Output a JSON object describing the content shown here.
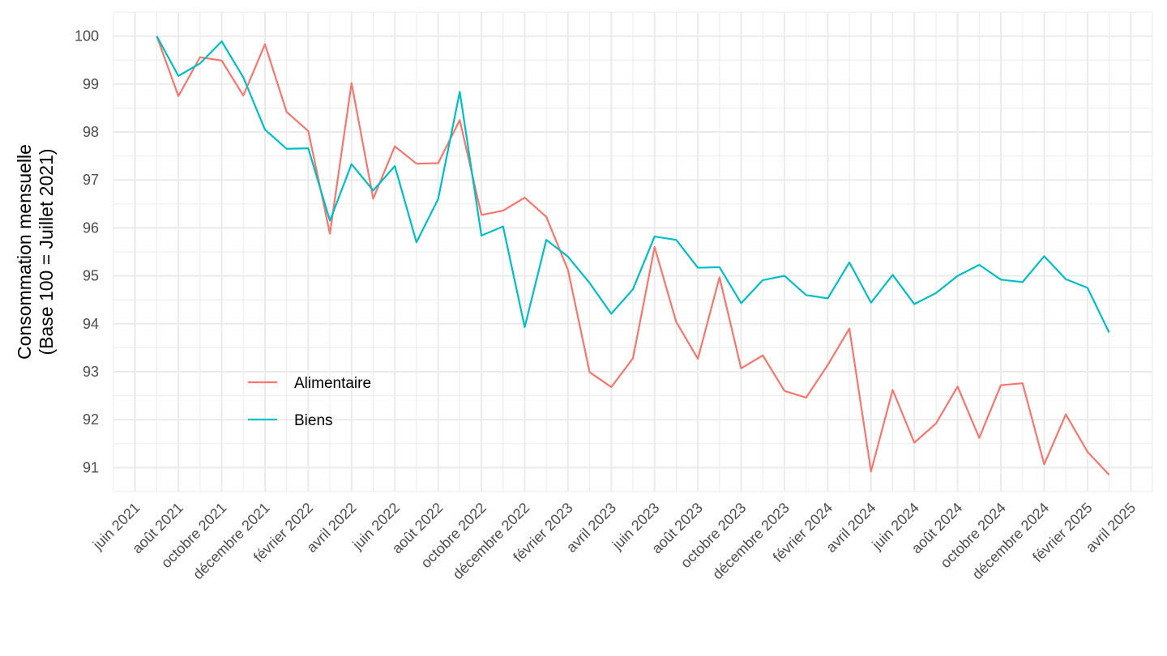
{
  "chart_data": {
    "type": "line",
    "title": "",
    "xlabel": "",
    "ylabel": [
      "Consommation mensuelle",
      "(Base 100 = Juillet 2021)"
    ],
    "ylim": [
      90.5,
      100.5
    ],
    "y_ticks": [
      91,
      92,
      93,
      94,
      95,
      96,
      97,
      98,
      99,
      100
    ],
    "x_range": [
      "2021-05",
      "2025-05"
    ],
    "x_ticks": [
      {
        "x": "2021-06",
        "label": "juin 2021"
      },
      {
        "x": "2021-08",
        "label": "août 2021"
      },
      {
        "x": "2021-10",
        "label": "octobre 2021"
      },
      {
        "x": "2021-12",
        "label": "décembre 2021"
      },
      {
        "x": "2022-02",
        "label": "février 2022"
      },
      {
        "x": "2022-04",
        "label": "avril 2022"
      },
      {
        "x": "2022-06",
        "label": "juin 2022"
      },
      {
        "x": "2022-08",
        "label": "août 2022"
      },
      {
        "x": "2022-10",
        "label": "octobre 2022"
      },
      {
        "x": "2022-12",
        "label": "décembre 2022"
      },
      {
        "x": "2023-02",
        "label": "février 2023"
      },
      {
        "x": "2023-04",
        "label": "avril 2023"
      },
      {
        "x": "2023-06",
        "label": "juin 2023"
      },
      {
        "x": "2023-08",
        "label": "août 2023"
      },
      {
        "x": "2023-10",
        "label": "octobre 2023"
      },
      {
        "x": "2023-12",
        "label": "décembre 2023"
      },
      {
        "x": "2024-02",
        "label": "février 2024"
      },
      {
        "x": "2024-04",
        "label": "avril 2024"
      },
      {
        "x": "2024-06",
        "label": "juin 2024"
      },
      {
        "x": "2024-08",
        "label": "août 2024"
      },
      {
        "x": "2024-10",
        "label": "octobre 2024"
      },
      {
        "x": "2024-12",
        "label": "décembre 2024"
      },
      {
        "x": "2025-02",
        "label": "février 2025"
      },
      {
        "x": "2025-04",
        "label": "avril 2025"
      }
    ],
    "x": [
      "2021-07",
      "2021-08",
      "2021-09",
      "2021-10",
      "2021-11",
      "2021-12",
      "2022-01",
      "2022-02",
      "2022-03",
      "2022-04",
      "2022-05",
      "2022-06",
      "2022-07",
      "2022-08",
      "2022-09",
      "2022-10",
      "2022-11",
      "2022-12",
      "2023-01",
      "2023-02",
      "2023-03",
      "2023-04",
      "2023-05",
      "2023-06",
      "2023-07",
      "2023-08",
      "2023-09",
      "2023-10",
      "2023-11",
      "2023-12",
      "2024-01",
      "2024-02",
      "2024-03",
      "2024-04",
      "2024-05",
      "2024-06",
      "2024-07",
      "2024-08",
      "2024-09",
      "2024-10",
      "2024-11",
      "2024-12",
      "2025-01",
      "2025-02",
      "2025-03"
    ],
    "series": [
      {
        "name": "Alimentaire",
        "color": "#F8766D",
        "values": [
          100.0,
          98.75,
          99.56,
          99.49,
          98.76,
          99.83,
          98.42,
          98.02,
          95.88,
          99.02,
          96.61,
          97.7,
          97.34,
          97.35,
          98.25,
          96.27,
          96.36,
          96.63,
          96.23,
          95.12,
          92.99,
          92.68,
          93.28,
          95.6,
          94.04,
          93.27,
          94.97,
          93.07,
          93.34,
          92.6,
          92.46,
          93.14,
          93.9,
          90.92,
          92.62,
          91.52,
          91.92,
          92.69,
          91.62,
          92.72,
          92.76,
          91.07,
          92.11,
          91.33,
          90.85
        ]
      },
      {
        "name": "Biens",
        "color": "#00BFC4",
        "values": [
          100.0,
          99.17,
          99.43,
          99.89,
          99.14,
          98.05,
          97.65,
          97.66,
          96.15,
          97.33,
          96.78,
          97.29,
          95.7,
          96.6,
          98.84,
          95.84,
          96.03,
          93.93,
          95.75,
          95.4,
          94.85,
          94.21,
          94.72,
          95.82,
          95.75,
          95.17,
          95.18,
          94.43,
          94.91,
          95.0,
          94.6,
          94.53,
          95.28,
          94.44,
          95.02,
          94.41,
          94.64,
          95.0,
          95.23,
          94.92,
          94.87,
          95.41,
          94.93,
          94.75,
          93.82
        ]
      }
    ],
    "legend_position": "bottom-left",
    "grid": true
  }
}
